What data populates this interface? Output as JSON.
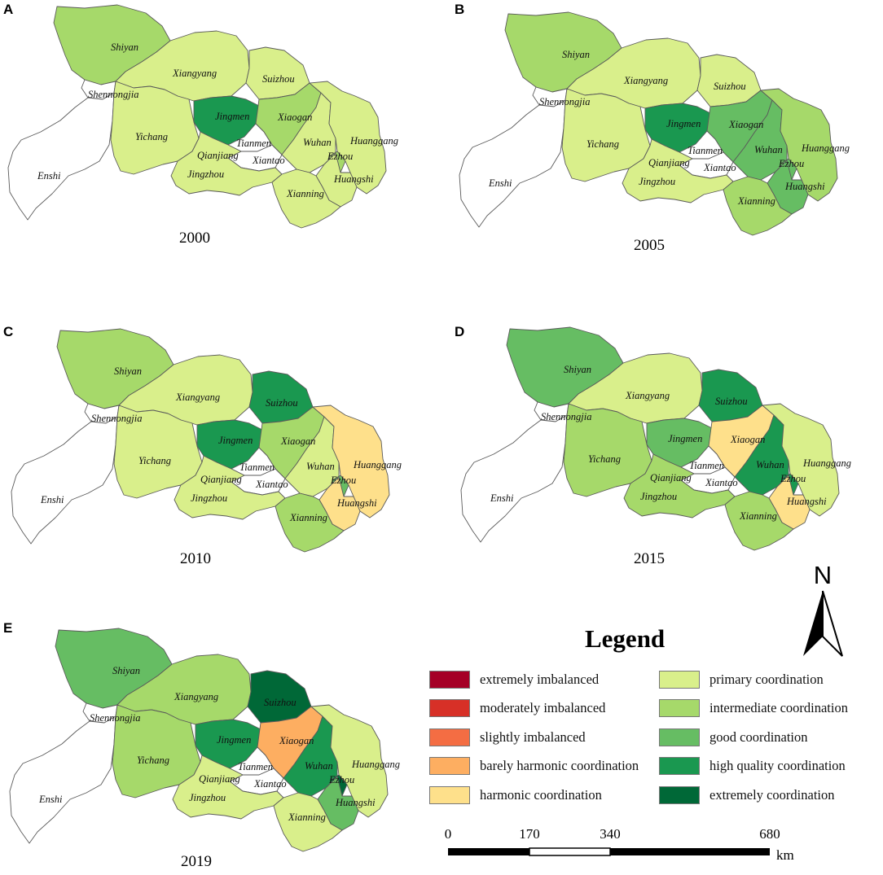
{
  "colors": {
    "extremely_imbalanced": "#a50026",
    "moderately_imbalanced": "#d73027",
    "slightly_imbalanced": "#f46d43",
    "barely_harmonic": "#fdae61",
    "harmonic": "#fee08b",
    "primary": "#d9ef8b",
    "intermediate": "#a6d96a",
    "good": "#66bd63",
    "high_quality": "#1a9850",
    "extremely_coordination": "#006837",
    "none": "#ffffff"
  },
  "panels": [
    {
      "letter": "A",
      "year": "2000",
      "values": {
        "Shiyan": "intermediate",
        "Xiangyang": "primary",
        "Suizhou": "primary",
        "Shennongjia": "none",
        "Enshi": "none",
        "Yichang": "primary",
        "Jingmen": "high_quality",
        "Xiaogan": "intermediate",
        "Tianmen": "none",
        "Qianjiang": "none",
        "Xiantao": "none",
        "Wuhan": "primary",
        "Huanggang": "primary",
        "Ezhou": "intermediate",
        "Jingzhou": "primary",
        "Huangshi": "primary",
        "Xianning": "primary"
      }
    },
    {
      "letter": "B",
      "year": "2005",
      "values": {
        "Shiyan": "intermediate",
        "Xiangyang": "primary",
        "Suizhou": "primary",
        "Shennongjia": "none",
        "Enshi": "none",
        "Yichang": "primary",
        "Jingmen": "high_quality",
        "Xiaogan": "good",
        "Tianmen": "none",
        "Qianjiang": "none",
        "Xiantao": "none",
        "Wuhan": "good",
        "Huanggang": "intermediate",
        "Ezhou": "good",
        "Jingzhou": "primary",
        "Huangshi": "good",
        "Xianning": "intermediate"
      }
    },
    {
      "letter": "C",
      "year": "2010",
      "values": {
        "Shiyan": "intermediate",
        "Xiangyang": "primary",
        "Suizhou": "high_quality",
        "Shennongjia": "none",
        "Enshi": "none",
        "Yichang": "primary",
        "Jingmen": "high_quality",
        "Xiaogan": "intermediate",
        "Tianmen": "none",
        "Qianjiang": "none",
        "Xiantao": "none",
        "Wuhan": "primary",
        "Huanggang": "harmonic",
        "Ezhou": "good",
        "Jingzhou": "primary",
        "Huangshi": "harmonic",
        "Xianning": "intermediate"
      }
    },
    {
      "letter": "D",
      "year": "2015",
      "values": {
        "Shiyan": "good",
        "Xiangyang": "primary",
        "Suizhou": "high_quality",
        "Shennongjia": "none",
        "Enshi": "none",
        "Yichang": "intermediate",
        "Jingmen": "good",
        "Xiaogan": "harmonic",
        "Tianmen": "none",
        "Qianjiang": "none",
        "Xiantao": "none",
        "Wuhan": "high_quality",
        "Huanggang": "primary",
        "Ezhou": "high_quality",
        "Jingzhou": "intermediate",
        "Huangshi": "harmonic",
        "Xianning": "intermediate"
      }
    },
    {
      "letter": "E",
      "year": "2019",
      "values": {
        "Shiyan": "good",
        "Xiangyang": "intermediate",
        "Suizhou": "extremely_coordination",
        "Shennongjia": "none",
        "Enshi": "none",
        "Yichang": "intermediate",
        "Jingmen": "high_quality",
        "Xiaogan": "barely_harmonic",
        "Tianmen": "none",
        "Qianjiang": "none",
        "Xiantao": "none",
        "Wuhan": "high_quality",
        "Huanggang": "primary",
        "Ezhou": "extremely_coordination",
        "Jingzhou": "primary",
        "Huangshi": "good",
        "Xianning": "primary"
      }
    }
  ],
  "city_labels": [
    "Shiyan",
    "Xiangyang",
    "Suizhou",
    "Shennongjia",
    "Jingmen",
    "Xiaogan",
    "Yichang",
    "Tianmen",
    "Wuhan",
    "Huanggang",
    "Ezhou",
    "Qianjiang",
    "Xiantao",
    "Jingzhou",
    "Huangshi",
    "Enshi",
    "Xianning"
  ],
  "legend": {
    "title": "Legend",
    "items": [
      {
        "key": "extremely_imbalanced",
        "label": "extremely imbalanced"
      },
      {
        "key": "moderately_imbalanced",
        "label": "moderately imbalanced"
      },
      {
        "key": "slightly_imbalanced",
        "label": "slightly imbalanced"
      },
      {
        "key": "barely_harmonic",
        "label": "barely harmonic coordination"
      },
      {
        "key": "harmonic",
        "label": "harmonic coordination"
      },
      {
        "key": "primary",
        "label": "primary coordination"
      },
      {
        "key": "intermediate",
        "label": "intermediate coordination"
      },
      {
        "key": "good",
        "label": "good coordination"
      },
      {
        "key": "high_quality",
        "label": "high quality coordination"
      },
      {
        "key": "extremely_coordination",
        "label": "extremely coordination"
      }
    ]
  },
  "north_arrow": {
    "label": "N"
  },
  "scale": {
    "ticks": [
      "0",
      "170",
      "340",
      "680"
    ],
    "unit": "km"
  }
}
